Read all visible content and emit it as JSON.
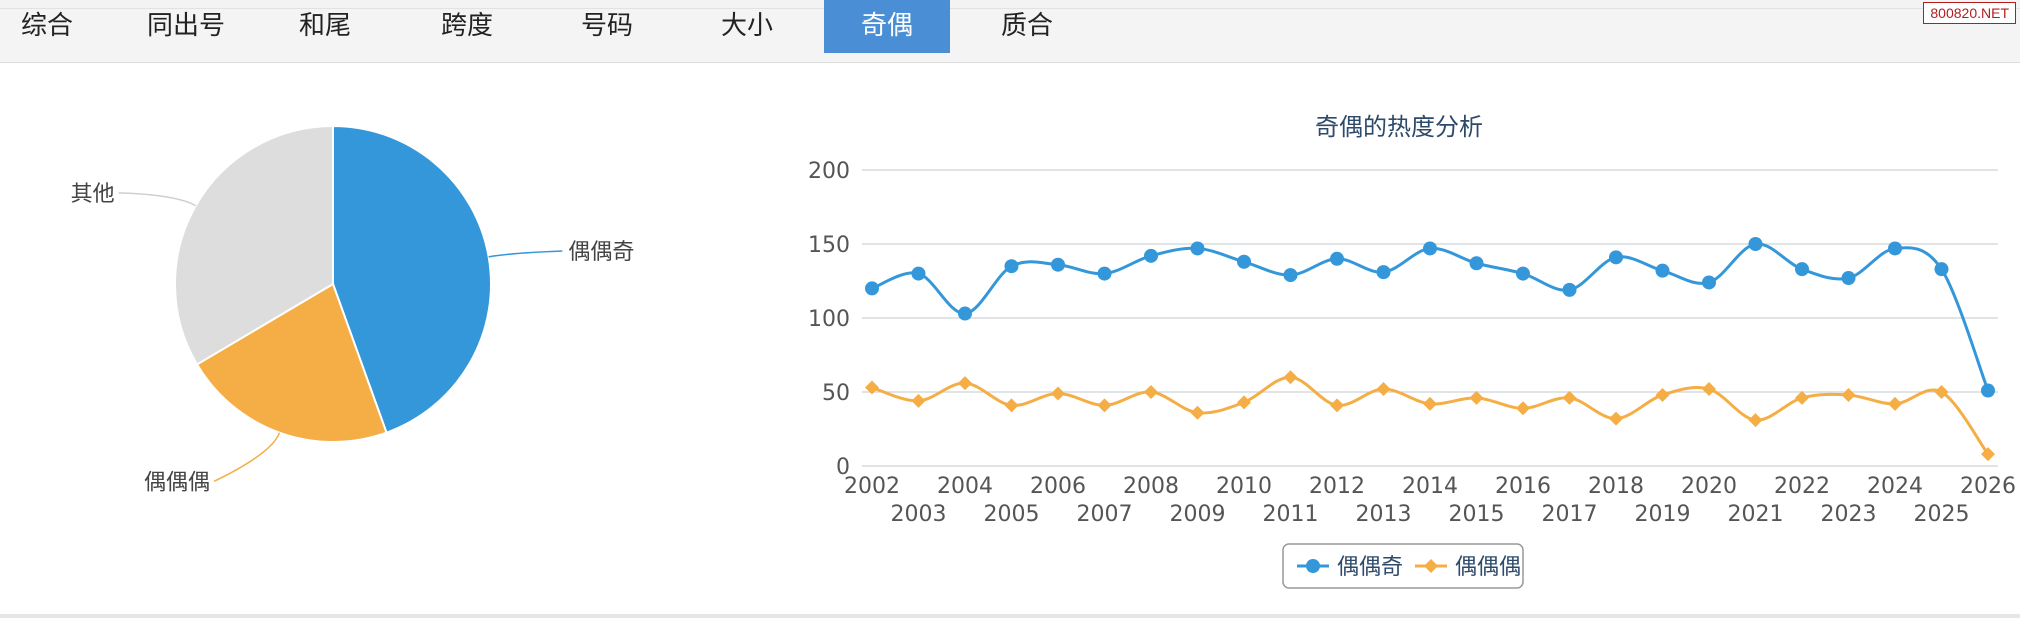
{
  "watermark": "800820.NET",
  "tabs": [
    {
      "label": "综合",
      "active": false
    },
    {
      "label": "同出号",
      "active": false
    },
    {
      "label": "和尾",
      "active": false
    },
    {
      "label": "跨度",
      "active": false
    },
    {
      "label": "号码",
      "active": false
    },
    {
      "label": "大小",
      "active": false
    },
    {
      "label": "奇偶",
      "active": true
    },
    {
      "label": "质合",
      "active": false
    }
  ],
  "colors": {
    "accent": "#4a8fd6",
    "series_blue": "#3497d9",
    "series_orange": "#f5ae45",
    "other_gray": "#dddddd"
  },
  "chart_data": [
    {
      "type": "pie",
      "slices": [
        {
          "label": "偶偶奇",
          "value": 44.5,
          "color": "#3497d9"
        },
        {
          "label": "偶偶偶",
          "value": 22.0,
          "color": "#f5ae45"
        },
        {
          "label": "其他",
          "value": 33.5,
          "color": "#dddddd"
        }
      ]
    },
    {
      "type": "line",
      "title": "奇偶的热度分析",
      "xlabel": "",
      "ylabel": "",
      "ylim": [
        0,
        200
      ],
      "yticks": [
        0,
        50,
        100,
        150,
        200
      ],
      "grid": true,
      "legend": "bottom",
      "x": [
        "2002",
        "2003",
        "2004",
        "2005",
        "2006",
        "2007",
        "2008",
        "2009",
        "2010",
        "2011",
        "2012",
        "2013",
        "2014",
        "2015",
        "2016",
        "2017",
        "2018",
        "2019",
        "2020",
        "2021",
        "2022",
        "2023",
        "2024",
        "2025",
        "2026"
      ],
      "series": [
        {
          "name": "偶偶奇",
          "color": "#3497d9",
          "marker": "circle",
          "values": [
            120,
            130,
            103,
            135,
            136,
            130,
            142,
            147,
            138,
            129,
            140,
            131,
            147,
            137,
            130,
            119,
            141,
            132,
            124,
            150,
            133,
            127,
            147,
            133,
            51
          ]
        },
        {
          "name": "偶偶偶",
          "color": "#f5ae45",
          "marker": "diamond",
          "values": [
            53,
            44,
            56,
            41,
            49,
            41,
            50,
            36,
            43,
            60,
            41,
            52,
            42,
            46,
            39,
            46,
            32,
            48,
            52,
            31,
            46,
            48,
            42,
            50,
            8
          ]
        }
      ]
    }
  ]
}
